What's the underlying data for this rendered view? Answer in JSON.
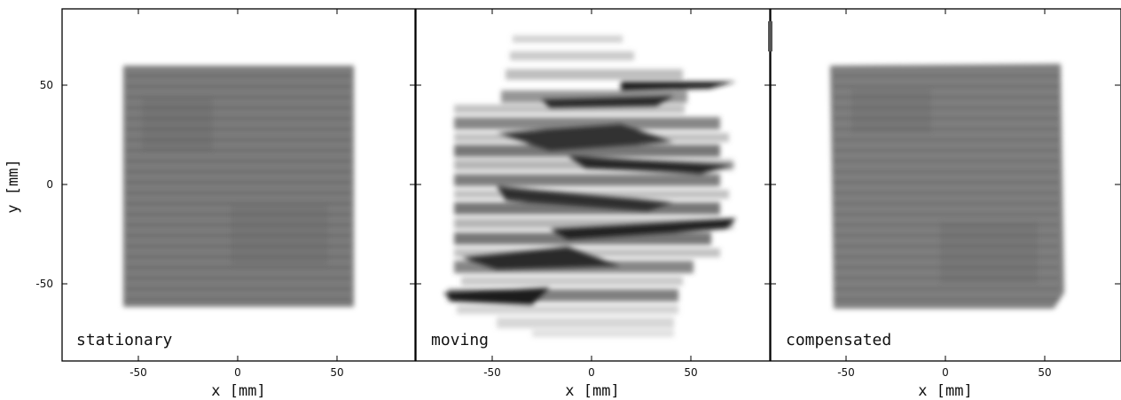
{
  "figure": {
    "ylabel": "y  [mm]",
    "y_ticks": [
      "50",
      "0",
      "-50"
    ],
    "panels": [
      {
        "label": "stationary",
        "xlabel": "x  [mm]",
        "x_ticks": [
          "-50",
          "0",
          "50"
        ]
      },
      {
        "label": "moving",
        "xlabel": "x  [mm]",
        "x_ticks": [
          "-50",
          "0",
          "50"
        ]
      },
      {
        "label": "compensated",
        "xlabel": "x  [mm]",
        "x_ticks": [
          "-50",
          "0",
          "50"
        ]
      }
    ]
  }
}
